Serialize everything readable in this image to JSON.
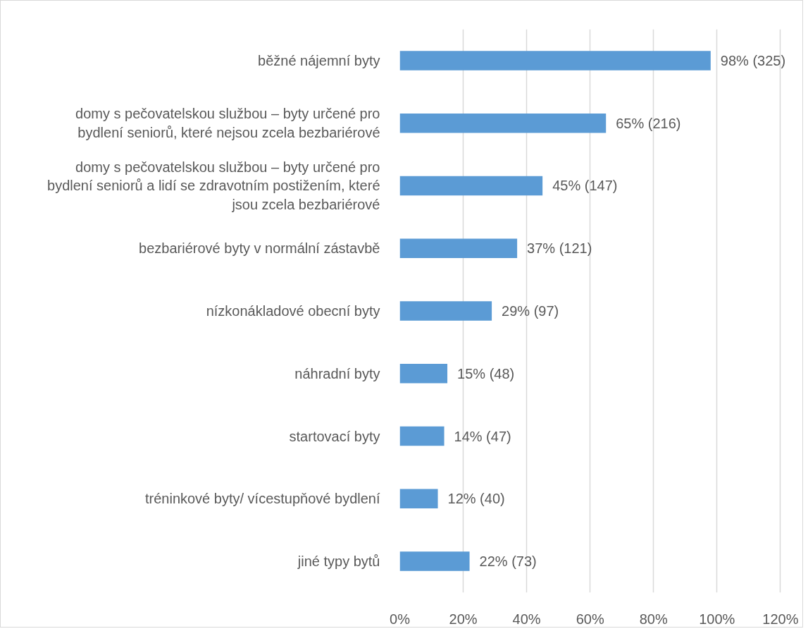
{
  "chart_data": {
    "type": "bar",
    "orientation": "horizontal",
    "categories": [
      "běžné nájemní byty",
      "domy s pečovatelskou službou – byty určené pro\nbydlení seniorů, které nejsou zcela bezbariérové",
      "domy s pečovatelskou službou – byty určené pro\nbydlení seniorů a lidí se zdravotním postižením, které\njsou zcela bezbariérové",
      "bezbariérové byty v normální zástavbě",
      "nízkonákladové obecní byty",
      "náhradní byty",
      "startovací byty",
      "tréninkové byty/ vícestupňové bydlení",
      "jiné typy bytů"
    ],
    "values": [
      98,
      65,
      45,
      37,
      29,
      15,
      14,
      12,
      22
    ],
    "value_labels": [
      "98% (325)",
      "65% (216)",
      "45% (147)",
      "37% (121)",
      "29% (97)",
      "15% (48)",
      "14% (47)",
      "12% (40)",
      "22% (73)"
    ],
    "color": "#5b9bd5",
    "xlim": [
      0,
      120
    ],
    "xticks": [
      {
        "value": 0,
        "label": "0%"
      },
      {
        "value": 20,
        "label": "20%"
      },
      {
        "value": 40,
        "label": "40%"
      },
      {
        "value": 60,
        "label": "60%"
      },
      {
        "value": 80,
        "label": "80%"
      },
      {
        "value": 100,
        "label": "100%"
      },
      {
        "value": 120,
        "label": "120%"
      }
    ],
    "grid": "x"
  }
}
